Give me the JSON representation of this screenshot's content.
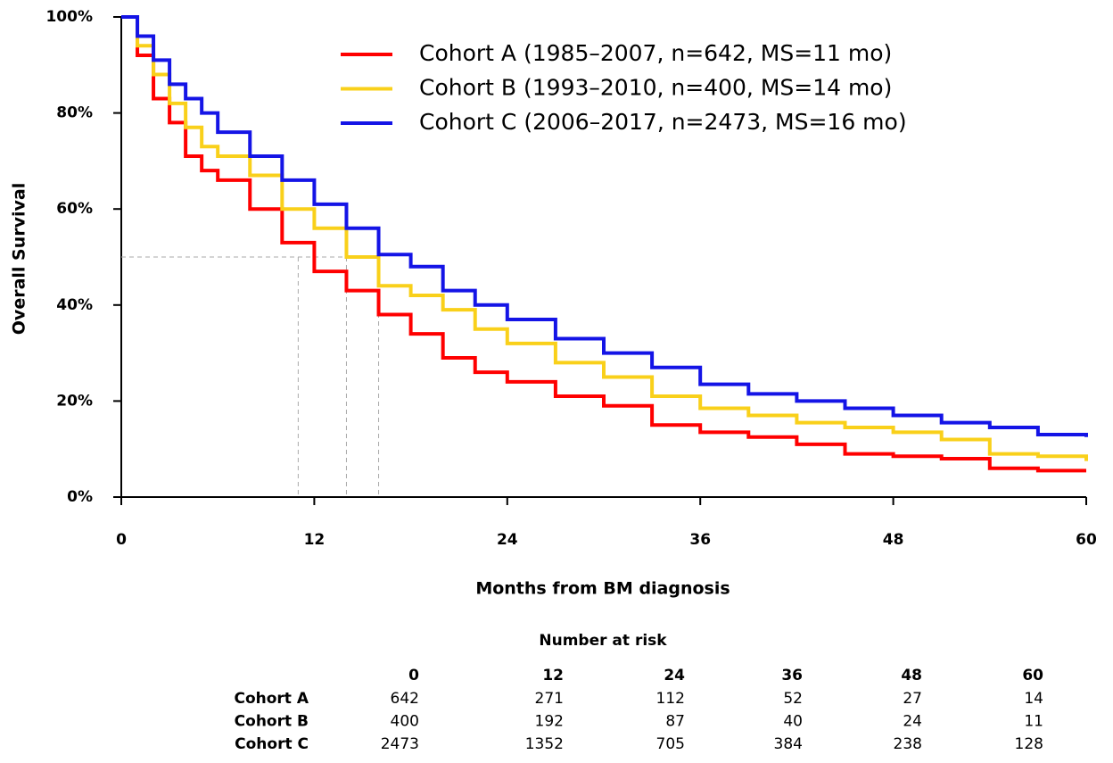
{
  "chart_data": {
    "type": "line",
    "step": true,
    "x_label": "Months from BM diagnosis",
    "y_label": "Overall Survival",
    "x": [
      0,
      1,
      2,
      3,
      4,
      5,
      6,
      8,
      10,
      12,
      14,
      16,
      18,
      20,
      22,
      24,
      27,
      30,
      33,
      36,
      39,
      42,
      45,
      48,
      51,
      54,
      57,
      60
    ],
    "series": [
      {
        "name": "Cohort A (1985–2007, n=642, MS=11 mo)",
        "color": "#ff0000",
        "values": [
          100,
          92,
          83,
          78,
          71,
          68,
          66,
          60,
          53,
          47,
          43,
          38,
          34,
          29,
          26,
          24,
          21,
          19,
          15,
          13.5,
          12.5,
          11,
          9,
          8.5,
          8,
          6,
          5.5,
          5.5
        ]
      },
      {
        "name": "Cohort B (1993–2010, n=400, MS=14 mo)",
        "color": "#f9d01a",
        "values": [
          100,
          94,
          88,
          82,
          77,
          73,
          71,
          67,
          60,
          56,
          50,
          44,
          42,
          39,
          35,
          32,
          28,
          25,
          21,
          18.5,
          17,
          15.5,
          14.5,
          13.5,
          12,
          9,
          8.5,
          7.5
        ]
      },
      {
        "name": "Cohort C (2006–2017, n=2473, MS=16 mo)",
        "color": "#1414e6",
        "values": [
          100,
          96,
          91,
          86,
          83,
          80,
          76,
          71,
          66,
          61,
          56,
          50.5,
          48,
          43,
          40,
          37,
          33,
          30,
          27,
          23.5,
          21.5,
          20,
          18.5,
          17,
          15.5,
          14.5,
          13,
          12.5
        ]
      }
    ],
    "median_lines": {
      "y": 50,
      "x": [
        11,
        14,
        16
      ]
    },
    "xlim": [
      0,
      60
    ],
    "xticks": [
      0,
      12,
      24,
      36,
      48,
      60
    ],
    "ylim": [
      0,
      100
    ],
    "yticks": [
      {
        "value": 0,
        "label": "0%"
      },
      {
        "value": 20,
        "label": "20%"
      },
      {
        "value": 40,
        "label": "40%"
      },
      {
        "value": 60,
        "label": "60%"
      },
      {
        "value": 80,
        "label": "80%"
      },
      {
        "value": 100,
        "label": "100%"
      }
    ],
    "legend": "top-right"
  },
  "risk_table": {
    "title": "Number at risk",
    "times": [
      "0",
      "12",
      "24",
      "36",
      "48",
      "60"
    ],
    "rows": [
      {
        "label": "Cohort A",
        "values": [
          "642",
          "271",
          "112",
          "52",
          "27",
          "14"
        ]
      },
      {
        "label": "Cohort B",
        "values": [
          "400",
          "192",
          "87",
          "40",
          "24",
          "11"
        ]
      },
      {
        "label": "Cohort C",
        "values": [
          "2473",
          "1352",
          "705",
          "384",
          "238",
          "128"
        ]
      }
    ]
  }
}
